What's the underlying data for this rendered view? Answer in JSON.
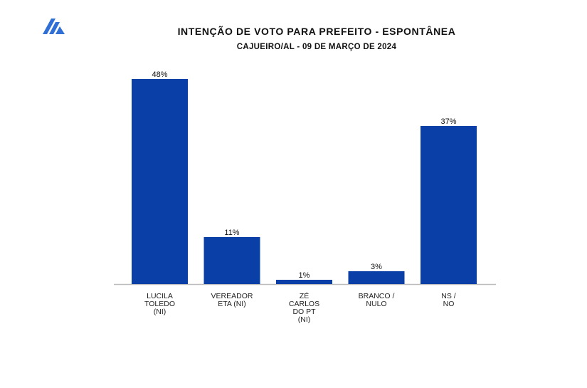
{
  "header": {
    "logo_icon": "stripes-logo-icon",
    "title": "INTENÇÃO DE VOTO PARA PREFEITO - ESPONTÂNEA",
    "subtitle": "CAJUEIRO/AL - 09 DE MARÇO DE 2024"
  },
  "colors": {
    "bar": "#0a3fa8",
    "logo": "#2f6fd6",
    "baseline": "#bbbbbb"
  },
  "chart_data": {
    "type": "bar",
    "title": "INTENÇÃO DE VOTO PARA PREFEITO - ESPONTÂNEA",
    "subtitle": "CAJUEIRO/AL - 09 DE MARÇO DE 2024",
    "categories": [
      [
        "LUCILA",
        "TOLEDO",
        "(NI)"
      ],
      [
        "VEREADOR",
        "ETA (NI)"
      ],
      [
        "ZÉ",
        "CARLOS",
        "DO PT",
        "(NI)"
      ],
      [
        "BRANCO /",
        "NULO"
      ],
      [
        "NS /",
        "NO"
      ]
    ],
    "values": [
      48,
      11,
      1,
      3,
      37
    ],
    "value_labels": [
      "48%",
      "11%",
      "1%",
      "3%",
      "37%"
    ],
    "ylim": [
      0,
      48
    ],
    "grid": false,
    "legend": "none"
  },
  "footer": {
    "source_text": ""
  }
}
